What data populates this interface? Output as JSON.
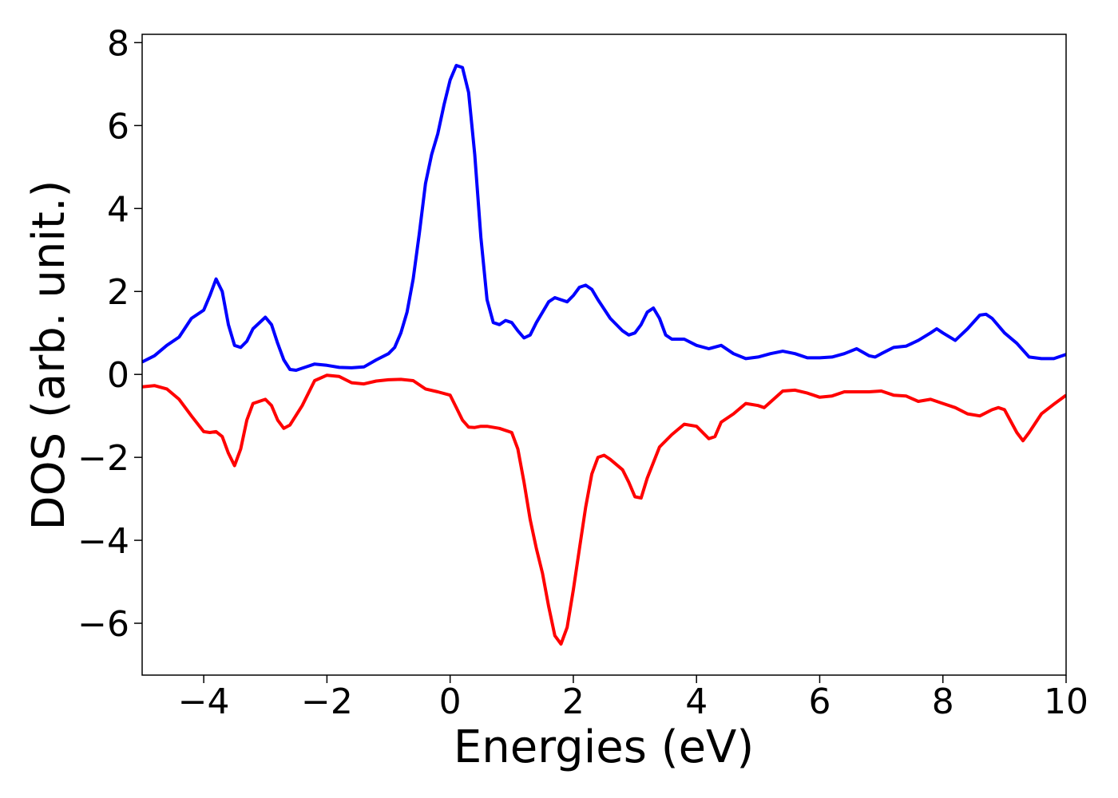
{
  "chart_data": {
    "type": "line",
    "xlabel": "Energies (eV)",
    "ylabel": "DOS (arb. unit.)",
    "xlim": [
      -5,
      10
    ],
    "xticks": [
      {
        "value": -4,
        "label": "−4"
      },
      {
        "value": -2,
        "label": "−2"
      },
      0,
      2,
      4,
      6,
      8,
      10
    ],
    "ylim": [
      -7.25,
      8.2
    ],
    "yticks": [
      {
        "value": -6,
        "label": "−6"
      },
      {
        "value": -4,
        "label": "−4"
      },
      {
        "value": -2,
        "label": "−2"
      },
      0,
      2,
      4,
      6,
      8
    ],
    "grid": false,
    "series": [
      {
        "color": "#0000ff",
        "x": [
          -5,
          -4.8,
          -4.6,
          -4.4,
          -4.2,
          -4.0,
          -3.9,
          -3.8,
          -3.7,
          -3.6,
          -3.5,
          -3.4,
          -3.3,
          -3.2,
          -3.0,
          -2.9,
          -2.8,
          -2.7,
          -2.6,
          -2.5,
          -2.4,
          -2.2,
          -2.0,
          -1.8,
          -1.6,
          -1.4,
          -1.2,
          -1.0,
          -0.9,
          -0.8,
          -0.7,
          -0.6,
          -0.5,
          -0.4,
          -0.3,
          -0.2,
          -0.1,
          0.0,
          0.1,
          0.2,
          0.3,
          0.4,
          0.5,
          0.6,
          0.7,
          0.8,
          0.9,
          1.0,
          1.1,
          1.2,
          1.3,
          1.4,
          1.6,
          1.7,
          1.8,
          1.9,
          2.0,
          2.1,
          2.2,
          2.3,
          2.4,
          2.6,
          2.8,
          2.9,
          3.0,
          3.1,
          3.2,
          3.3,
          3.4,
          3.5,
          3.6,
          3.8,
          4.0,
          4.2,
          4.4,
          4.6,
          4.8,
          5.0,
          5.2,
          5.4,
          5.6,
          5.8,
          6.0,
          6.2,
          6.4,
          6.6,
          6.8,
          6.9,
          7.0,
          7.2,
          7.4,
          7.6,
          7.8,
          7.9,
          8.0,
          8.2,
          8.4,
          8.6,
          8.7,
          8.8,
          9.0,
          9.2,
          9.4,
          9.6,
          9.8,
          10.0
        ],
        "values": [
          0.3,
          0.45,
          0.7,
          0.9,
          1.35,
          1.55,
          1.9,
          2.3,
          2.0,
          1.2,
          0.7,
          0.65,
          0.8,
          1.1,
          1.38,
          1.2,
          0.75,
          0.35,
          0.12,
          0.1,
          0.15,
          0.25,
          0.22,
          0.17,
          0.16,
          0.18,
          0.35,
          0.5,
          0.65,
          1.0,
          1.5,
          2.3,
          3.4,
          4.6,
          5.3,
          5.8,
          6.5,
          7.1,
          7.45,
          7.4,
          6.8,
          5.3,
          3.3,
          1.8,
          1.25,
          1.2,
          1.3,
          1.25,
          1.05,
          0.88,
          0.95,
          1.25,
          1.75,
          1.85,
          1.8,
          1.75,
          1.9,
          2.1,
          2.15,
          2.05,
          1.8,
          1.35,
          1.05,
          0.95,
          1.0,
          1.2,
          1.5,
          1.6,
          1.35,
          0.95,
          0.85,
          0.85,
          0.7,
          0.62,
          0.7,
          0.5,
          0.38,
          0.42,
          0.5,
          0.56,
          0.5,
          0.4,
          0.4,
          0.42,
          0.5,
          0.62,
          0.45,
          0.42,
          0.5,
          0.65,
          0.68,
          0.82,
          1.0,
          1.1,
          1.0,
          0.82,
          1.1,
          1.43,
          1.45,
          1.35,
          1.0,
          0.75,
          0.42,
          0.38,
          0.38,
          0.48
        ]
      },
      {
        "color": "#ff0000",
        "x": [
          -5,
          -4.8,
          -4.6,
          -4.4,
          -4.2,
          -4.0,
          -3.9,
          -3.8,
          -3.7,
          -3.6,
          -3.5,
          -3.4,
          -3.3,
          -3.2,
          -3.0,
          -2.9,
          -2.8,
          -2.7,
          -2.6,
          -2.4,
          -2.2,
          -2.0,
          -1.8,
          -1.6,
          -1.4,
          -1.2,
          -1.0,
          -0.8,
          -0.6,
          -0.4,
          -0.2,
          0.0,
          0.1,
          0.2,
          0.3,
          0.4,
          0.5,
          0.6,
          0.8,
          1.0,
          1.1,
          1.2,
          1.3,
          1.4,
          1.5,
          1.6,
          1.7,
          1.8,
          1.9,
          2.0,
          2.1,
          2.2,
          2.3,
          2.4,
          2.5,
          2.6,
          2.8,
          2.9,
          3.0,
          3.1,
          3.2,
          3.4,
          3.6,
          3.8,
          4.0,
          4.2,
          4.3,
          4.4,
          4.6,
          4.8,
          5.0,
          5.1,
          5.4,
          5.6,
          5.8,
          6.0,
          6.2,
          6.4,
          6.8,
          7.0,
          7.2,
          7.4,
          7.6,
          7.8,
          8.0,
          8.2,
          8.4,
          8.6,
          8.8,
          8.9,
          9.0,
          9.2,
          9.3,
          9.4,
          9.6,
          9.8,
          10.0
        ],
        "values": [
          -0.3,
          -0.27,
          -0.35,
          -0.6,
          -1.0,
          -1.38,
          -1.4,
          -1.38,
          -1.5,
          -1.9,
          -2.2,
          -1.8,
          -1.1,
          -0.7,
          -0.6,
          -0.75,
          -1.1,
          -1.3,
          -1.22,
          -0.75,
          -0.15,
          -0.02,
          -0.05,
          -0.2,
          -0.23,
          -0.16,
          -0.13,
          -0.12,
          -0.15,
          -0.35,
          -0.42,
          -0.5,
          -0.8,
          -1.1,
          -1.27,
          -1.28,
          -1.25,
          -1.25,
          -1.3,
          -1.4,
          -1.8,
          -2.6,
          -3.5,
          -4.2,
          -4.8,
          -5.6,
          -6.3,
          -6.5,
          -6.1,
          -5.2,
          -4.2,
          -3.2,
          -2.4,
          -2.0,
          -1.95,
          -2.05,
          -2.3,
          -2.6,
          -2.95,
          -2.98,
          -2.5,
          -1.75,
          -1.45,
          -1.2,
          -1.25,
          -1.55,
          -1.5,
          -1.15,
          -0.95,
          -0.7,
          -0.75,
          -0.8,
          -0.4,
          -0.38,
          -0.45,
          -0.55,
          -0.52,
          -0.42,
          -0.42,
          -0.4,
          -0.5,
          -0.52,
          -0.65,
          -0.6,
          -0.7,
          -0.8,
          -0.95,
          -1.0,
          -0.85,
          -0.8,
          -0.85,
          -1.4,
          -1.6,
          -1.4,
          -0.95,
          -0.72,
          -0.5
        ]
      }
    ]
  }
}
